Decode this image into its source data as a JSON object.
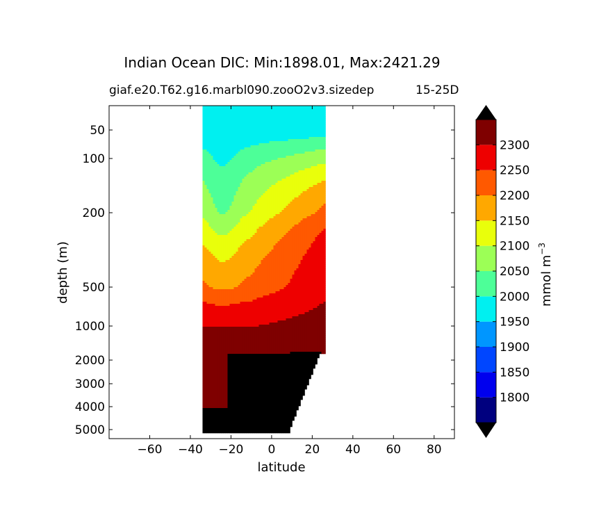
{
  "chart_data": {
    "type": "heatmap",
    "subtype": "filled-contour",
    "title": "Indian Ocean DIC: Min:1898.01, Max:2421.29",
    "subtitle": "giaf.e20.T62.g16.marbl090.zooO2v3.sizedep",
    "subtitle_right": "15-25D",
    "xlabel": "latitude",
    "ylabel": "depth (m)",
    "xlim": [
      -80,
      90
    ],
    "x_ticks": [
      -60,
      -40,
      -20,
      0,
      20,
      40,
      60,
      80
    ],
    "x_tick_labels": [
      "−60",
      "−40",
      "−20",
      "0",
      "20",
      "40",
      "60",
      "80"
    ],
    "y_scale": "stretched (piecewise, depth increasing downward)",
    "y_ticks": [
      50,
      100,
      200,
      500,
      1000,
      2000,
      3000,
      4000,
      5000
    ],
    "y_tick_labels": [
      "50",
      "100",
      "200",
      "500",
      "1000",
      "2000",
      "3000",
      "4000",
      "5000"
    ],
    "data_extent_latitude": [
      -34,
      26
    ],
    "colorbar": {
      "label": "mmol m",
      "label_superscript": "−3",
      "extend": "both",
      "levels": [
        1800,
        1850,
        1900,
        1950,
        2000,
        2050,
        2100,
        2150,
        2200,
        2250,
        2300
      ],
      "level_labels": [
        "1800",
        "1850",
        "1900",
        "1950",
        "2000",
        "2050",
        "2100",
        "2150",
        "2200",
        "2250",
        "2300"
      ],
      "colors": [
        "#00007f",
        "#0000ee",
        "#0046ff",
        "#0096ff",
        "#00f0f0",
        "#4dff98",
        "#9cff56",
        "#e9ff0b",
        "#ffa800",
        "#ff5900",
        "#ee0000",
        "#7f0000"
      ],
      "under_color": "#000000",
      "over_color": "#000000"
    },
    "grid": false,
    "legend": "colorbar-right"
  }
}
